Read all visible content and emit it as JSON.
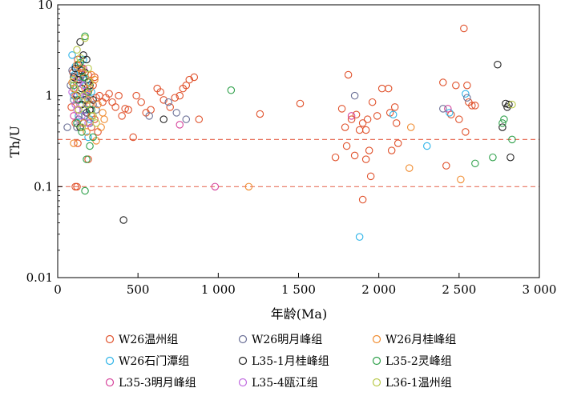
{
  "chart_data": {
    "type": "scatter",
    "title": "",
    "xlabel": "年龄(Ma)",
    "ylabel": "Th/U",
    "xlim": [
      0,
      3000
    ],
    "ylim": [
      0.01,
      10
    ],
    "yscale": "log",
    "x_ticks": [
      0,
      500,
      1000,
      1500,
      2000,
      2500,
      3000
    ],
    "x_tick_labels": [
      "0",
      "500",
      "1 000",
      "1 500",
      "2 000",
      "2 500",
      "3 000"
    ],
    "y_ticks": [
      0.01,
      0.1,
      1,
      10
    ],
    "y_tick_labels": [
      "0.01",
      "0.1",
      "1",
      "10"
    ],
    "grid": false,
    "legend_position": "bottom",
    "reference_lines": [
      {
        "axis": "y",
        "value": 0.33,
        "style": "dashed",
        "color": "#e8735e"
      },
      {
        "axis": "y",
        "value": 0.1,
        "style": "dashed",
        "color": "#e8735e"
      }
    ],
    "series": [
      {
        "name": "W26温州组",
        "color": "#e0512b",
        "points": [
          [
            100,
            1.2
          ],
          [
            120,
            0.9
          ],
          [
            140,
            1.5
          ],
          [
            160,
            0.7
          ],
          [
            180,
            1.1
          ],
          [
            200,
            0.8
          ],
          [
            220,
            1.3
          ],
          [
            150,
            2.0
          ],
          [
            130,
            0.6
          ],
          [
            170,
            1.0
          ],
          [
            110,
            0.5
          ],
          [
            190,
            1.7
          ],
          [
            210,
            0.45
          ],
          [
            240,
            0.95
          ],
          [
            95,
            1.8
          ],
          [
            85,
            0.75
          ],
          [
            125,
            2.5
          ],
          [
            230,
            0.55
          ],
          [
            260,
            1.0
          ],
          [
            280,
            0.85
          ],
          [
            230,
            1.6
          ],
          [
            250,
            0.4
          ],
          [
            190,
            0.2
          ],
          [
            120,
            0.1
          ],
          [
            110,
            0.1
          ],
          [
            125,
            0.3
          ],
          [
            300,
            0.95
          ],
          [
            320,
            1.05
          ],
          [
            340,
            0.85
          ],
          [
            360,
            0.75
          ],
          [
            380,
            1.0
          ],
          [
            400,
            0.6
          ],
          [
            420,
            0.72
          ],
          [
            440,
            0.7
          ],
          [
            470,
            0.35
          ],
          [
            490,
            1.0
          ],
          [
            520,
            0.85
          ],
          [
            550,
            0.65
          ],
          [
            580,
            0.7
          ],
          [
            620,
            1.2
          ],
          [
            640,
            1.1
          ],
          [
            660,
            0.9
          ],
          [
            700,
            0.75
          ],
          [
            730,
            0.95
          ],
          [
            760,
            1.0
          ],
          [
            780,
            1.2
          ],
          [
            800,
            1.3
          ],
          [
            820,
            1.5
          ],
          [
            850,
            1.6
          ],
          [
            880,
            0.55
          ],
          [
            1260,
            0.63
          ],
          [
            1510,
            0.82
          ],
          [
            1730,
            0.21
          ],
          [
            1770,
            0.72
          ],
          [
            1790,
            0.45
          ],
          [
            1800,
            0.28
          ],
          [
            1810,
            1.7
          ],
          [
            1830,
            0.55
          ],
          [
            1850,
            0.22
          ],
          [
            1860,
            0.62
          ],
          [
            1880,
            0.42
          ],
          [
            1900,
            0.5
          ],
          [
            1920,
            0.42
          ],
          [
            1930,
            0.55
          ],
          [
            1940,
            0.25
          ],
          [
            1900,
            0.072
          ],
          [
            1920,
            0.2
          ],
          [
            1950,
            0.13
          ],
          [
            1960,
            0.85
          ],
          [
            1990,
            0.6
          ],
          [
            2020,
            1.2
          ],
          [
            2060,
            1.2
          ],
          [
            2070,
            0.65
          ],
          [
            2080,
            0.25
          ],
          [
            2100,
            0.75
          ],
          [
            2110,
            0.5
          ],
          [
            2120,
            0.3
          ],
          [
            2400,
            1.4
          ],
          [
            2420,
            0.17
          ],
          [
            2450,
            0.62
          ],
          [
            2480,
            1.3
          ],
          [
            2500,
            0.55
          ],
          [
            2530,
            5.5
          ],
          [
            2540,
            0.4
          ],
          [
            2550,
            1.3
          ],
          [
            2560,
            0.85
          ],
          [
            2580,
            0.78
          ],
          [
            2600,
            0.78
          ]
        ]
      },
      {
        "name": "W26石门潭组",
        "color": "#2bb3e8",
        "points": [
          [
            90,
            2.8
          ],
          [
            110,
            2.1
          ],
          [
            130,
            1.6
          ],
          [
            150,
            1.2
          ],
          [
            160,
            0.9
          ],
          [
            170,
            0.7
          ],
          [
            180,
            1.5
          ],
          [
            200,
            0.55
          ],
          [
            120,
            0.5
          ],
          [
            140,
            1.9
          ],
          [
            100,
            1.0
          ],
          [
            190,
            0.35
          ],
          [
            160,
            2.5
          ],
          [
            130,
            0.6
          ],
          [
            150,
            0.45
          ],
          [
            210,
            1.1
          ],
          [
            175,
            1.3
          ],
          [
            105,
            1.7
          ],
          [
            1880,
            0.028
          ],
          [
            2300,
            0.28
          ],
          [
            2440,
            0.65
          ],
          [
            2540,
            1.05
          ],
          [
            2090,
            0.62
          ]
        ]
      },
      {
        "name": "L35-3明月峰组",
        "color": "#d6449c",
        "points": [
          [
            120,
            1.5
          ],
          [
            140,
            0.8
          ],
          [
            160,
            2.0
          ],
          [
            180,
            1.1
          ],
          [
            100,
            0.6
          ],
          [
            760,
            0.48
          ],
          [
            980,
            0.1
          ],
          [
            1830,
            0.6
          ],
          [
            2430,
            0.72
          ]
        ]
      },
      {
        "name": "W26明月峰组",
        "color": "#6a6f96",
        "points": [
          [
            80,
            1.3
          ],
          [
            100,
            0.9
          ],
          [
            120,
            0.45
          ],
          [
            140,
            1.6
          ],
          [
            160,
            0.7
          ],
          [
            180,
            1.0
          ],
          [
            200,
            0.5
          ],
          [
            220,
            0.8
          ],
          [
            60,
            0.45
          ],
          [
            90,
            1.9
          ],
          [
            130,
            0.55
          ],
          [
            170,
            0.6
          ],
          [
            240,
            0.7
          ],
          [
            570,
            0.6
          ],
          [
            690,
            0.85
          ],
          [
            740,
            0.65
          ],
          [
            800,
            0.55
          ],
          [
            1850,
            1.0
          ],
          [
            2400,
            0.72
          ],
          [
            2550,
            0.95
          ]
        ]
      },
      {
        "name": "L35-1月桂峰组",
        "color": "#222222",
        "points": [
          [
            110,
            2.0
          ],
          [
            130,
            1.5
          ],
          [
            150,
            1.2
          ],
          [
            170,
            0.9
          ],
          [
            190,
            1.4
          ],
          [
            140,
            3.9
          ],
          [
            160,
            2.8
          ],
          [
            180,
            2.5
          ],
          [
            120,
            1.0
          ],
          [
            200,
            0.7
          ],
          [
            210,
            0.6
          ],
          [
            150,
            0.8
          ],
          [
            170,
            1.8
          ],
          [
            130,
            2.2
          ],
          [
            190,
            1.1
          ],
          [
            160,
            0.5
          ],
          [
            140,
            0.45
          ],
          [
            180,
            0.65
          ],
          [
            100,
            1.6
          ],
          [
            220,
            0.9
          ],
          [
            200,
            1.3
          ],
          [
            150,
            1.9
          ],
          [
            410,
            0.043
          ],
          [
            660,
            0.55
          ],
          [
            2740,
            2.2
          ],
          [
            2770,
            0.45
          ],
          [
            2790,
            0.82
          ],
          [
            2800,
            0.75
          ],
          [
            2810,
            0.8
          ],
          [
            2820,
            0.21
          ]
        ]
      },
      {
        "name": "L35-4瓯江组",
        "color": "#c06ae0",
        "points": [
          [
            90,
            1.1
          ],
          [
            110,
            0.8
          ],
          [
            130,
            1.4
          ],
          [
            150,
            0.6
          ],
          [
            170,
            1.0
          ],
          [
            190,
            0.5
          ],
          [
            120,
            0.7
          ],
          [
            160,
            1.3
          ]
        ]
      },
      {
        "name": "W26月桂峰组",
        "color": "#f08c30",
        "points": [
          [
            90,
            1.4
          ],
          [
            110,
            1.0
          ],
          [
            130,
            0.7
          ],
          [
            150,
            1.8
          ],
          [
            170,
            1.2
          ],
          [
            190,
            0.9
          ],
          [
            210,
            0.6
          ],
          [
            230,
            1.5
          ],
          [
            250,
            0.8
          ],
          [
            270,
            0.45
          ],
          [
            290,
            0.55
          ],
          [
            200,
            1.2
          ],
          [
            180,
            0.4
          ],
          [
            160,
            0.5
          ],
          [
            120,
            2.2
          ],
          [
            140,
            2.0
          ],
          [
            240,
            0.32
          ],
          [
            280,
            0.65
          ],
          [
            210,
            1.7
          ],
          [
            100,
            0.3
          ],
          [
            1190,
            0.1
          ],
          [
            2190,
            0.16
          ],
          [
            2200,
            0.45
          ],
          [
            2510,
            0.12
          ]
        ]
      },
      {
        "name": "L35-2灵峰组",
        "color": "#2ea04a",
        "points": [
          [
            100,
            1.3
          ],
          [
            130,
            0.9
          ],
          [
            160,
            1.6
          ],
          [
            190,
            1.1
          ],
          [
            210,
            0.7
          ],
          [
            170,
            4.5
          ],
          [
            140,
            2.3
          ],
          [
            180,
            0.2
          ],
          [
            170,
            0.09
          ],
          [
            120,
            0.5
          ],
          [
            150,
            0.4
          ],
          [
            200,
            0.28
          ],
          [
            220,
            0.35
          ],
          [
            1080,
            1.15
          ],
          [
            2600,
            0.18
          ],
          [
            2710,
            0.21
          ],
          [
            2770,
            0.5
          ],
          [
            2780,
            0.55
          ],
          [
            2830,
            0.33
          ]
        ]
      },
      {
        "name": "L36-1温州组",
        "color": "#b8c94a",
        "points": [
          [
            100,
            1.5
          ],
          [
            120,
            3.2
          ],
          [
            140,
            2.6
          ],
          [
            160,
            1.0
          ],
          [
            180,
            0.8
          ],
          [
            200,
            1.4
          ],
          [
            220,
            0.6
          ],
          [
            170,
            4.3
          ],
          [
            150,
            0.45
          ],
          [
            130,
            0.7
          ],
          [
            110,
            1.2
          ],
          [
            190,
            2.0
          ],
          [
            240,
            0.5
          ],
          [
            2830,
            0.8
          ]
        ]
      }
    ]
  }
}
